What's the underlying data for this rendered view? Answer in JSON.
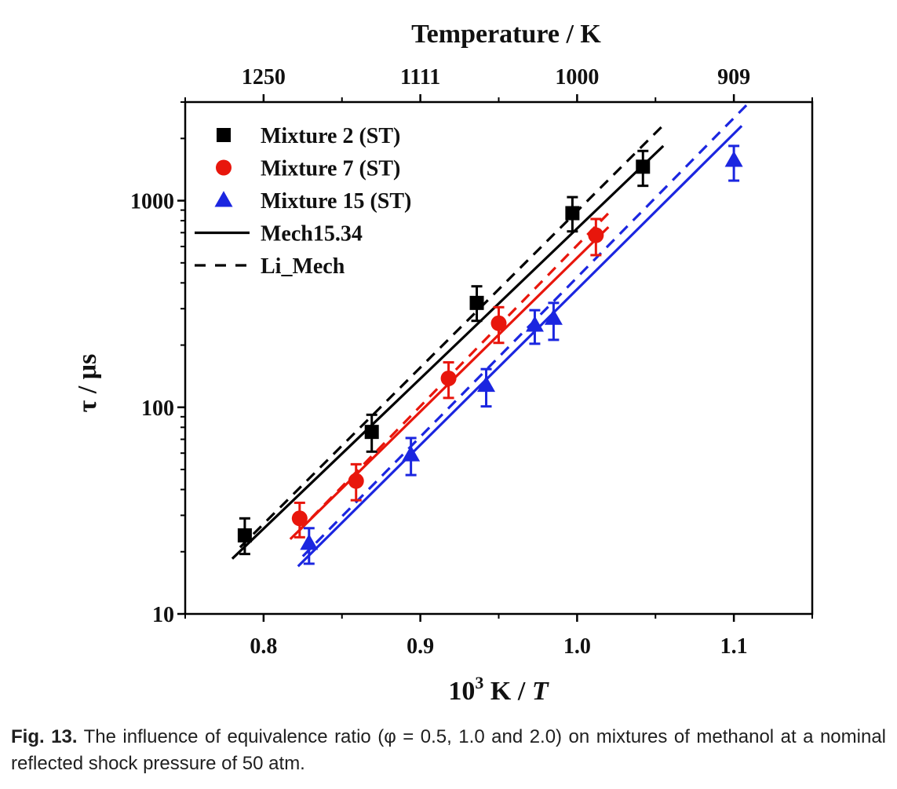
{
  "chart_data": {
    "type": "scatter",
    "xlabel_base": "10",
    "xlabel_exp": "3",
    "xlabel_unit": " K / ",
    "xlabel_var": "T",
    "ylabel": "τ / μs",
    "top_axis_label": "Temperature / K",
    "xlim": [
      0.75,
      1.15
    ],
    "ylim": [
      10,
      3000
    ],
    "y_scale": "log",
    "x_ticks": [
      "0.8",
      "0.9",
      "1.0",
      "1.1"
    ],
    "x_tick_values": [
      0.8,
      0.9,
      1.0,
      1.1
    ],
    "y_ticks": [
      "10",
      "100",
      "1000"
    ],
    "y_tick_values": [
      10,
      100,
      1000
    ],
    "top_ticks": [
      "1250",
      "1111",
      "1000",
      "909"
    ],
    "top_tick_values": [
      0.8,
      0.9,
      1.0,
      1.1
    ],
    "legend_position": "top-left",
    "series": [
      {
        "name": "Mixture 2 (ST)",
        "marker": "square",
        "color": "#000000",
        "x": [
          0.788,
          0.869,
          0.936,
          0.997,
          1.042
        ],
        "y": [
          24,
          76,
          320,
          870,
          1460
        ],
        "err_low": [
          19.5,
          61,
          262,
          710,
          1180
        ],
        "err_high": [
          29,
          92,
          385,
          1040,
          1740
        ]
      },
      {
        "name": "Mixture 7 (ST)",
        "marker": "circle",
        "color": "#e8160c",
        "x": [
          0.823,
          0.859,
          0.918,
          0.95,
          1.012
        ],
        "y": [
          29,
          44,
          138,
          255,
          680
        ],
        "err_low": [
          23.5,
          35.5,
          111,
          205,
          545
        ],
        "err_high": [
          34.5,
          53,
          165,
          305,
          815
        ]
      },
      {
        "name": "Mixture 15 (ST)",
        "marker": "triangle",
        "color": "#1b26e0",
        "x": [
          0.829,
          0.894,
          0.942,
          0.973,
          0.985,
          1.1
        ],
        "y": [
          22,
          59,
          128,
          250,
          270,
          1570
        ],
        "err_low": [
          17.5,
          47,
          101,
          203,
          212,
          1250
        ],
        "err_high": [
          26,
          71,
          153,
          295,
          320,
          1840
        ]
      }
    ],
    "lines": [
      {
        "name": "Mech15.34",
        "style": "solid",
        "color": "#000000",
        "x": [
          0.78,
          1.055
        ],
        "y": [
          18.5,
          1840
        ]
      },
      {
        "name": "Li_Mech",
        "style": "dashed",
        "color": "#000000",
        "x": [
          0.785,
          1.055
        ],
        "y": [
          21,
          2320
        ]
      },
      {
        "style": "solid",
        "color": "#e8160c",
        "x": [
          0.817,
          1.02
        ],
        "y": [
          23,
          745
        ]
      },
      {
        "style": "dashed",
        "color": "#e8160c",
        "x": [
          0.822,
          1.02
        ],
        "y": [
          25,
          870
        ]
      },
      {
        "style": "solid",
        "color": "#1b26e0",
        "x": [
          0.822,
          1.105
        ],
        "y": [
          17,
          2300
        ]
      },
      {
        "style": "dashed",
        "color": "#1b26e0",
        "x": [
          0.825,
          1.11
        ],
        "y": [
          19,
          3000
        ]
      }
    ],
    "legend": [
      {
        "label": "Mixture 2 (ST)",
        "marker": "square",
        "color": "#000000"
      },
      {
        "label": "Mixture 7 (ST)",
        "marker": "circle",
        "color": "#e8160c"
      },
      {
        "label": "Mixture 15 (ST)",
        "marker": "triangle",
        "color": "#1b26e0"
      },
      {
        "label": "Mech15.34",
        "marker": "line-solid",
        "color": "#000000"
      },
      {
        "label": "Li_Mech",
        "marker": "line-dashed",
        "color": "#000000"
      }
    ]
  },
  "caption": {
    "label": "Fig. 13.",
    "text": " The influence of equivalence ratio (φ = 0.5, 1.0 and 2.0) on mixtures of methanol at a nominal reflected shock pressure of 50 atm."
  }
}
